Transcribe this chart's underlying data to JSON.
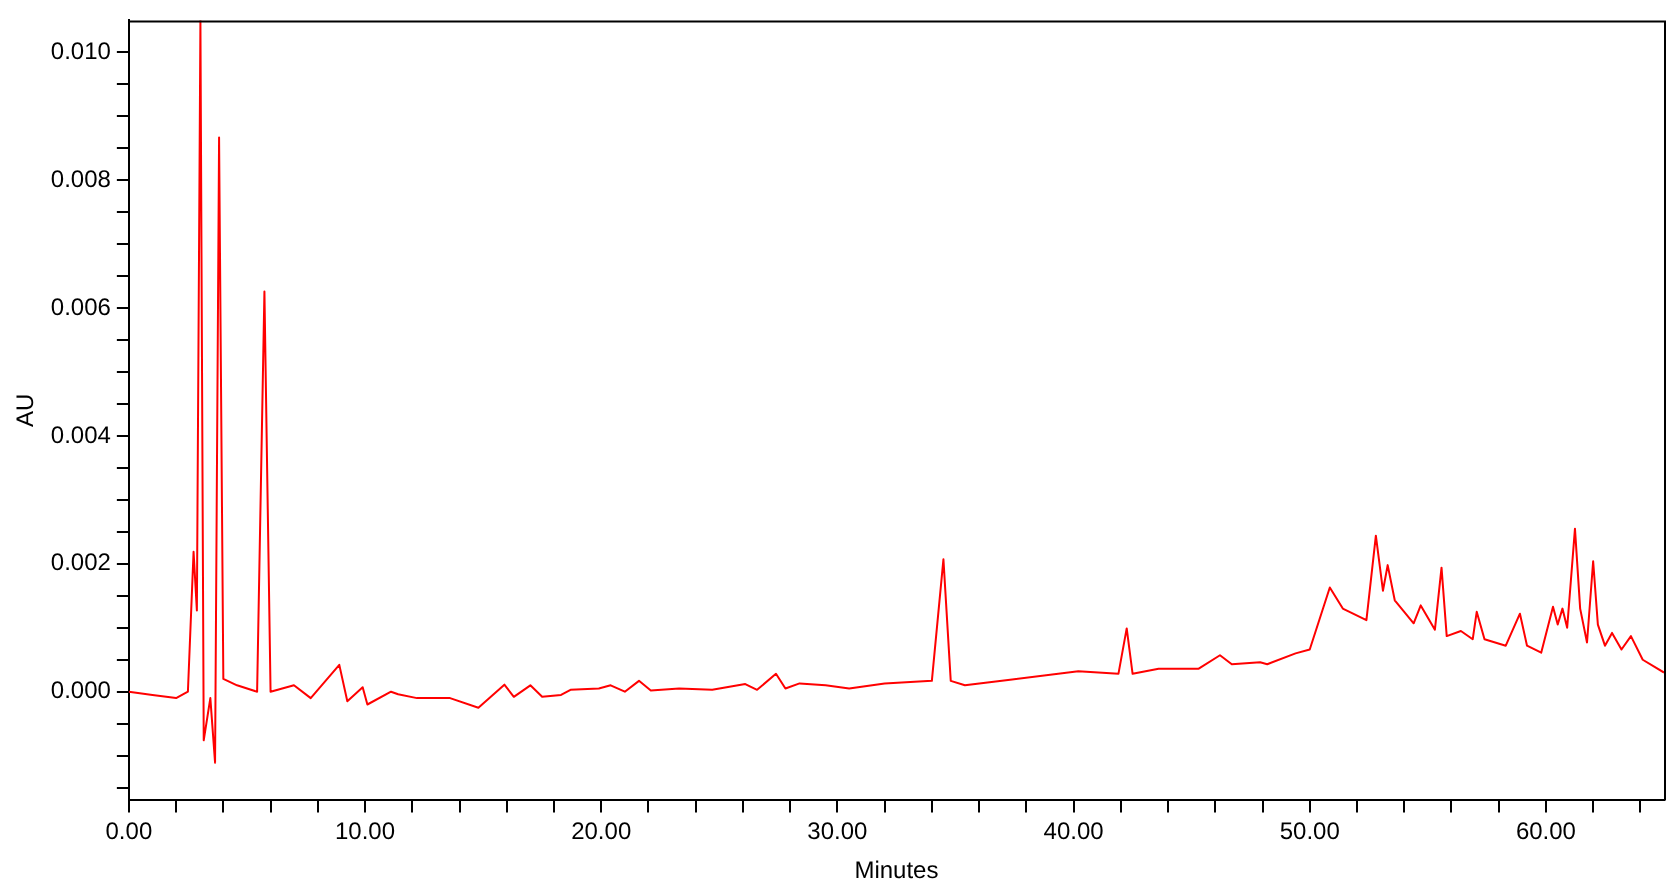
{
  "chart_data": {
    "type": "line",
    "xlabel": "Minutes",
    "ylabel": "AU",
    "xlim": [
      0,
      65
    ],
    "ylim": [
      -0.0017,
      0.0105
    ],
    "xticks": [
      {
        "value": 0,
        "label": "0.00"
      },
      {
        "value": 2,
        "label": null
      },
      {
        "value": 4,
        "label": null
      },
      {
        "value": 6,
        "label": null
      },
      {
        "value": 8,
        "label": null
      },
      {
        "value": 10,
        "label": "10.00"
      },
      {
        "value": 12,
        "label": null
      },
      {
        "value": 14,
        "label": null
      },
      {
        "value": 16,
        "label": null
      },
      {
        "value": 18,
        "label": null
      },
      {
        "value": 20,
        "label": "20.00"
      },
      {
        "value": 22,
        "label": null
      },
      {
        "value": 24,
        "label": null
      },
      {
        "value": 26,
        "label": null
      },
      {
        "value": 28,
        "label": null
      },
      {
        "value": 30,
        "label": "30.00"
      },
      {
        "value": 32,
        "label": null
      },
      {
        "value": 34,
        "label": null
      },
      {
        "value": 36,
        "label": null
      },
      {
        "value": 38,
        "label": null
      },
      {
        "value": 40,
        "label": "40.00"
      },
      {
        "value": 42,
        "label": null
      },
      {
        "value": 44,
        "label": null
      },
      {
        "value": 46,
        "label": null
      },
      {
        "value": 48,
        "label": null
      },
      {
        "value": 50,
        "label": "50.00"
      },
      {
        "value": 52,
        "label": null
      },
      {
        "value": 54,
        "label": null
      },
      {
        "value": 56,
        "label": null
      },
      {
        "value": 58,
        "label": null
      },
      {
        "value": 60,
        "label": "60.00"
      },
      {
        "value": 62,
        "label": null
      },
      {
        "value": 64,
        "label": null
      }
    ],
    "yticks": [
      {
        "value": -0.0015,
        "label": null
      },
      {
        "value": -0.001,
        "label": null
      },
      {
        "value": -0.0005,
        "label": null
      },
      {
        "value": 0,
        "label": "0.000"
      },
      {
        "value": 0.0005,
        "label": null
      },
      {
        "value": 0.001,
        "label": null
      },
      {
        "value": 0.0015,
        "label": null
      },
      {
        "value": 0.002,
        "label": "0.002"
      },
      {
        "value": 0.0025,
        "label": null
      },
      {
        "value": 0.003,
        "label": null
      },
      {
        "value": 0.0035,
        "label": null
      },
      {
        "value": 0.004,
        "label": "0.004"
      },
      {
        "value": 0.0045,
        "label": null
      },
      {
        "value": 0.005,
        "label": null
      },
      {
        "value": 0.0055,
        "label": null
      },
      {
        "value": 0.006,
        "label": "0.006"
      },
      {
        "value": 0.0065,
        "label": null
      },
      {
        "value": 0.007,
        "label": null
      },
      {
        "value": 0.0075,
        "label": null
      },
      {
        "value": 0.008,
        "label": "0.008"
      },
      {
        "value": 0.0085,
        "label": null
      },
      {
        "value": 0.009,
        "label": null
      },
      {
        "value": 0.0095,
        "label": null
      },
      {
        "value": 0.01,
        "label": "0.010"
      }
    ],
    "grid": false,
    "legend": false,
    "marker": "none",
    "line_style": "solid",
    "series": [
      {
        "color": "#ff0000",
        "x": [
          0,
          1,
          2,
          2.5,
          2.74,
          2.88,
          3.03,
          3.17,
          3.45,
          3.65,
          3.82,
          4.0,
          4.58,
          5.43,
          5.74,
          6.0,
          6.99,
          7.7,
          8.91,
          9.25,
          9.9,
          10.1,
          11.1,
          11.4,
          12.2,
          13.6,
          14.8,
          15.9,
          16.3,
          17.0,
          17.5,
          18.3,
          18.7,
          19.9,
          20.4,
          21.0,
          21.6,
          22.1,
          23.3,
          24.7,
          26.1,
          26.6,
          27.4,
          27.8,
          28.4,
          29.5,
          30.5,
          32.0,
          34.0,
          34.49,
          34.8,
          35.4,
          37.4,
          40.2,
          41.9,
          42.25,
          42.5,
          43.6,
          45.3,
          46.2,
          46.7,
          47.9,
          48.2,
          49.4,
          50.0,
          50.85,
          51.4,
          52.4,
          52.8,
          53.1,
          53.3,
          53.6,
          54.4,
          54.7,
          55.3,
          55.58,
          55.8,
          56.4,
          56.9,
          57.07,
          57.4,
          58.3,
          58.9,
          59.2,
          59.8,
          60.3,
          60.5,
          60.7,
          60.9,
          61.23,
          61.45,
          61.74,
          62.0,
          62.2,
          62.5,
          62.8,
          63.2,
          63.6,
          64.1,
          65.0
        ],
        "values": [
          0,
          -5e-05,
          -0.0001,
          0,
          0.00219,
          0.00127,
          0.0105,
          -0.00076,
          -0.0001,
          -0.00111,
          0.00867,
          0.0002,
          0.0001,
          0,
          0.00626,
          0,
          0.0001,
          -0.0001,
          0.00042,
          -0.00015,
          7e-05,
          -0.0002,
          0,
          -4e-05,
          -0.0001,
          -0.0001,
          -0.00025,
          0.00011,
          -8e-05,
          0.0001,
          -8e-05,
          -5e-05,
          3e-05,
          5e-05,
          0.0001,
          0,
          0.00017,
          2e-05,
          5e-05,
          3e-05,
          0.00012,
          3e-05,
          0.00028,
          5e-05,
          0.00013,
          0.0001,
          5e-05,
          0.00013,
          0.00017,
          0.00207,
          0.00017,
          0.0001,
          0.00019,
          0.00032,
          0.00028,
          0.00099,
          0.00028,
          0.00036,
          0.00036,
          0.00057,
          0.00043,
          0.00046,
          0.00043,
          0.0006,
          0.00066,
          0.00163,
          0.0013,
          0.00112,
          0.00244,
          0.00158,
          0.00198,
          0.00143,
          0.00107,
          0.00135,
          0.00097,
          0.00194,
          0.00087,
          0.00095,
          0.00082,
          0.00125,
          0.00082,
          0.00072,
          0.00122,
          0.00072,
          0.00061,
          0.00133,
          0.00105,
          0.0013,
          0.001,
          0.00255,
          0.0013,
          0.00077,
          0.00204,
          0.00105,
          0.00072,
          0.00092,
          0.00066,
          0.00087,
          0.0005,
          0.0003
        ]
      }
    ]
  }
}
